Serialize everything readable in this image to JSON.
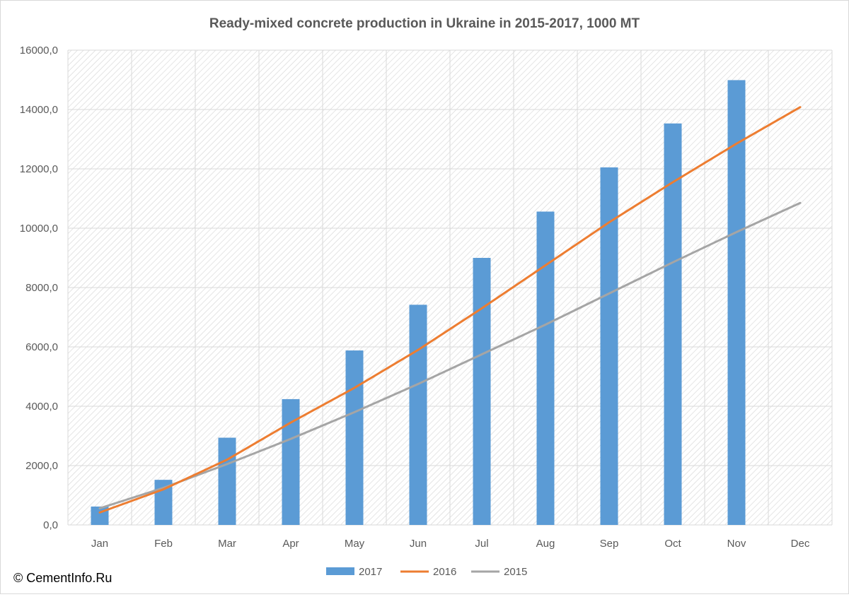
{
  "chart_data": {
    "type": "bar+line",
    "title": "Ready-mixed concrete production in Ukraine in 2015-2017, 1000 MT",
    "xlabel": "",
    "ylabel": "",
    "categories": [
      "Jan",
      "Feb",
      "Mar",
      "Apr",
      "May",
      "Jun",
      "Jul",
      "Aug",
      "Sep",
      "Oct",
      "Nov",
      "Dec"
    ],
    "ylim": [
      0,
      16000
    ],
    "yticks": [
      0,
      2000,
      4000,
      6000,
      8000,
      10000,
      12000,
      14000,
      16000
    ],
    "ytick_labels": [
      "0,0",
      "2000,0",
      "4000,0",
      "6000,0",
      "8000,0",
      "10000,0",
      "12000,0",
      "14000,0",
      "16000,0"
    ],
    "grid": true,
    "legend_position": "bottom",
    "series": [
      {
        "name": "2017",
        "type": "bar",
        "color": "#5b9bd5",
        "values": [
          620,
          1520,
          2940,
          4240,
          5880,
          7420,
          9000,
          10560,
          12050,
          13530,
          14990,
          null
        ]
      },
      {
        "name": "2016",
        "type": "line",
        "color": "#ed7d31",
        "values": [
          420,
          1200,
          2200,
          3450,
          4620,
          5900,
          7300,
          8750,
          10200,
          11550,
          12850,
          14080
        ]
      },
      {
        "name": "2015",
        "type": "line",
        "color": "#a5a5a5",
        "values": [
          560,
          1250,
          2050,
          2900,
          3800,
          4750,
          5750,
          6750,
          7800,
          8850,
          9870,
          10850
        ]
      }
    ]
  },
  "copyright": "© CementInfo.Ru"
}
